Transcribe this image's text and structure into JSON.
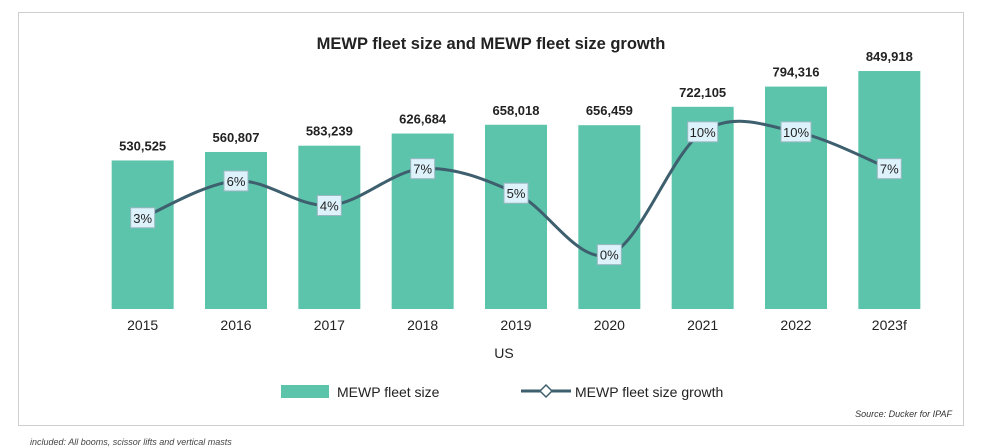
{
  "chart_data": {
    "type": "bar",
    "title": "MEWP fleet size and MEWP fleet size growth",
    "xlabel": "US",
    "ylabel": "",
    "categories": [
      "2015",
      "2016",
      "2017",
      "2018",
      "2019",
      "2020",
      "2021",
      "2022",
      "2023f"
    ],
    "ylim": [
      0,
      900000
    ],
    "series": [
      {
        "name": "MEWP fleet size",
        "kind": "bar",
        "values": [
          530525,
          560807,
          583239,
          626684,
          658018,
          656459,
          722105,
          794316,
          849918
        ],
        "labels": [
          "530,525",
          "560,807",
          "583,239",
          "626,684",
          "658,018",
          "656,459",
          "722,105",
          "794,316",
          "849,918"
        ],
        "color": "#5cc4ab"
      },
      {
        "name": "MEWP fleet size growth",
        "kind": "line",
        "values": [
          3,
          6,
          4,
          7,
          5,
          0,
          10,
          10,
          7
        ],
        "labels": [
          "3%",
          "6%",
          "4%",
          "7%",
          "5%",
          "0%",
          "10%",
          "10%",
          "7%"
        ],
        "ylim": [
          -5,
          13
        ],
        "color": "#3e5f6e",
        "marker_fill": "#ddf2fa"
      }
    ],
    "legend": "bottom",
    "grid": false,
    "source": "Source: Ducker for IPAF"
  },
  "footnote": "included: All booms, scissor lifts and vertical masts"
}
